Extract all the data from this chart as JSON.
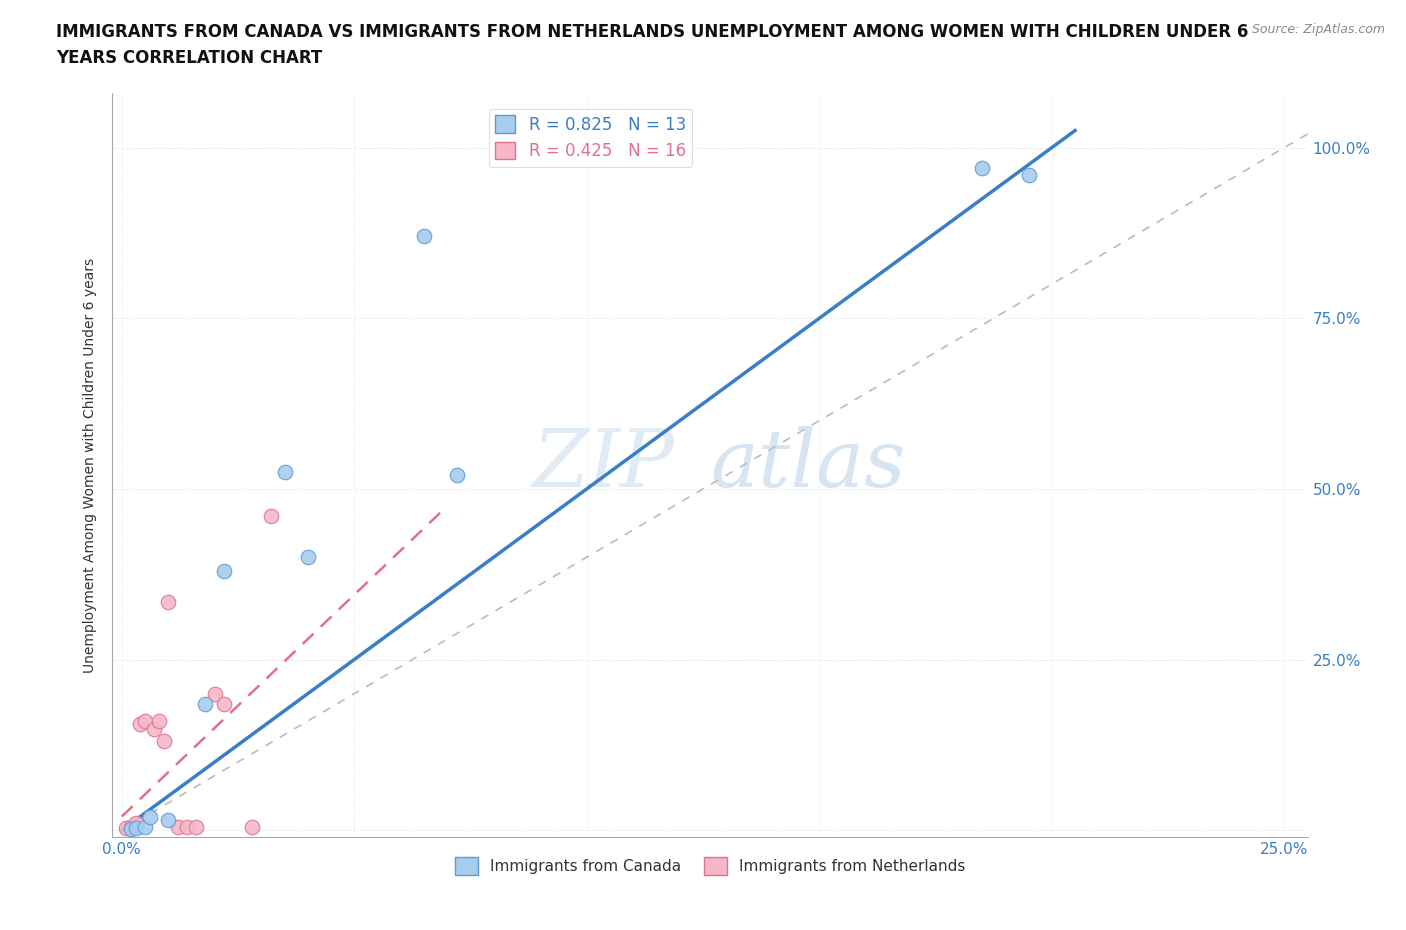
{
  "title_line1": "IMMIGRANTS FROM CANADA VS IMMIGRANTS FROM NETHERLANDS UNEMPLOYMENT AMONG WOMEN WITH CHILDREN UNDER 6",
  "title_line2": "YEARS CORRELATION CHART",
  "source": "Source: ZipAtlas.com",
  "ylabel": "Unemployment Among Women with Children Under 6 years",
  "x_ticks": [
    0.0,
    0.05,
    0.1,
    0.15,
    0.2,
    0.25
  ],
  "x_tick_labels": [
    "0.0%",
    "",
    "",
    "",
    "",
    "25.0%"
  ],
  "y_ticks": [
    0.0,
    0.25,
    0.5,
    0.75,
    1.0
  ],
  "y_tick_labels_right": [
    "",
    "25.0%",
    "50.0%",
    "75.0%",
    "100.0%"
  ],
  "xlim": [
    -0.002,
    0.255
  ],
  "ylim": [
    -0.01,
    1.08
  ],
  "canada_color": "#a8ccec",
  "canada_edge": "#5b9bd5",
  "netherlands_color": "#f4b8c8",
  "netherlands_edge": "#e07090",
  "canada_scatter_x": [
    0.002,
    0.003,
    0.005,
    0.006,
    0.01,
    0.018,
    0.022,
    0.04,
    0.065,
    0.072,
    0.185,
    0.195,
    0.035
  ],
  "canada_scatter_y": [
    0.002,
    0.003,
    0.005,
    0.02,
    0.015,
    0.185,
    0.38,
    0.4,
    0.87,
    0.52,
    0.97,
    0.96,
    0.525
  ],
  "netherlands_scatter_x": [
    0.001,
    0.002,
    0.003,
    0.004,
    0.005,
    0.007,
    0.008,
    0.009,
    0.01,
    0.012,
    0.014,
    0.016,
    0.02,
    0.022,
    0.028,
    0.032
  ],
  "netherlands_scatter_y": [
    0.003,
    0.005,
    0.01,
    0.155,
    0.16,
    0.148,
    0.16,
    0.13,
    0.335,
    0.005,
    0.005,
    0.005,
    0.2,
    0.185,
    0.005,
    0.46
  ],
  "canada_R": 0.825,
  "canada_N": 13,
  "netherlands_R": 0.425,
  "netherlands_N": 16,
  "canada_line_x": [
    0.0,
    0.205
  ],
  "canada_line_y": [
    0.0,
    1.025
  ],
  "netherlands_line_x": [
    0.0,
    0.07
  ],
  "netherlands_line_y": [
    0.02,
    0.475
  ],
  "diagonal_line_x": [
    0.0,
    0.255
  ],
  "diagonal_line_y": [
    0.0,
    1.02
  ],
  "watermark_zip": "ZIP",
  "watermark_atlas": "atlas",
  "background_color": "#ffffff",
  "grid_color": "#dddddd",
  "title_fontsize": 12,
  "axis_label_fontsize": 10,
  "tick_fontsize": 11,
  "scatter_size": 110
}
